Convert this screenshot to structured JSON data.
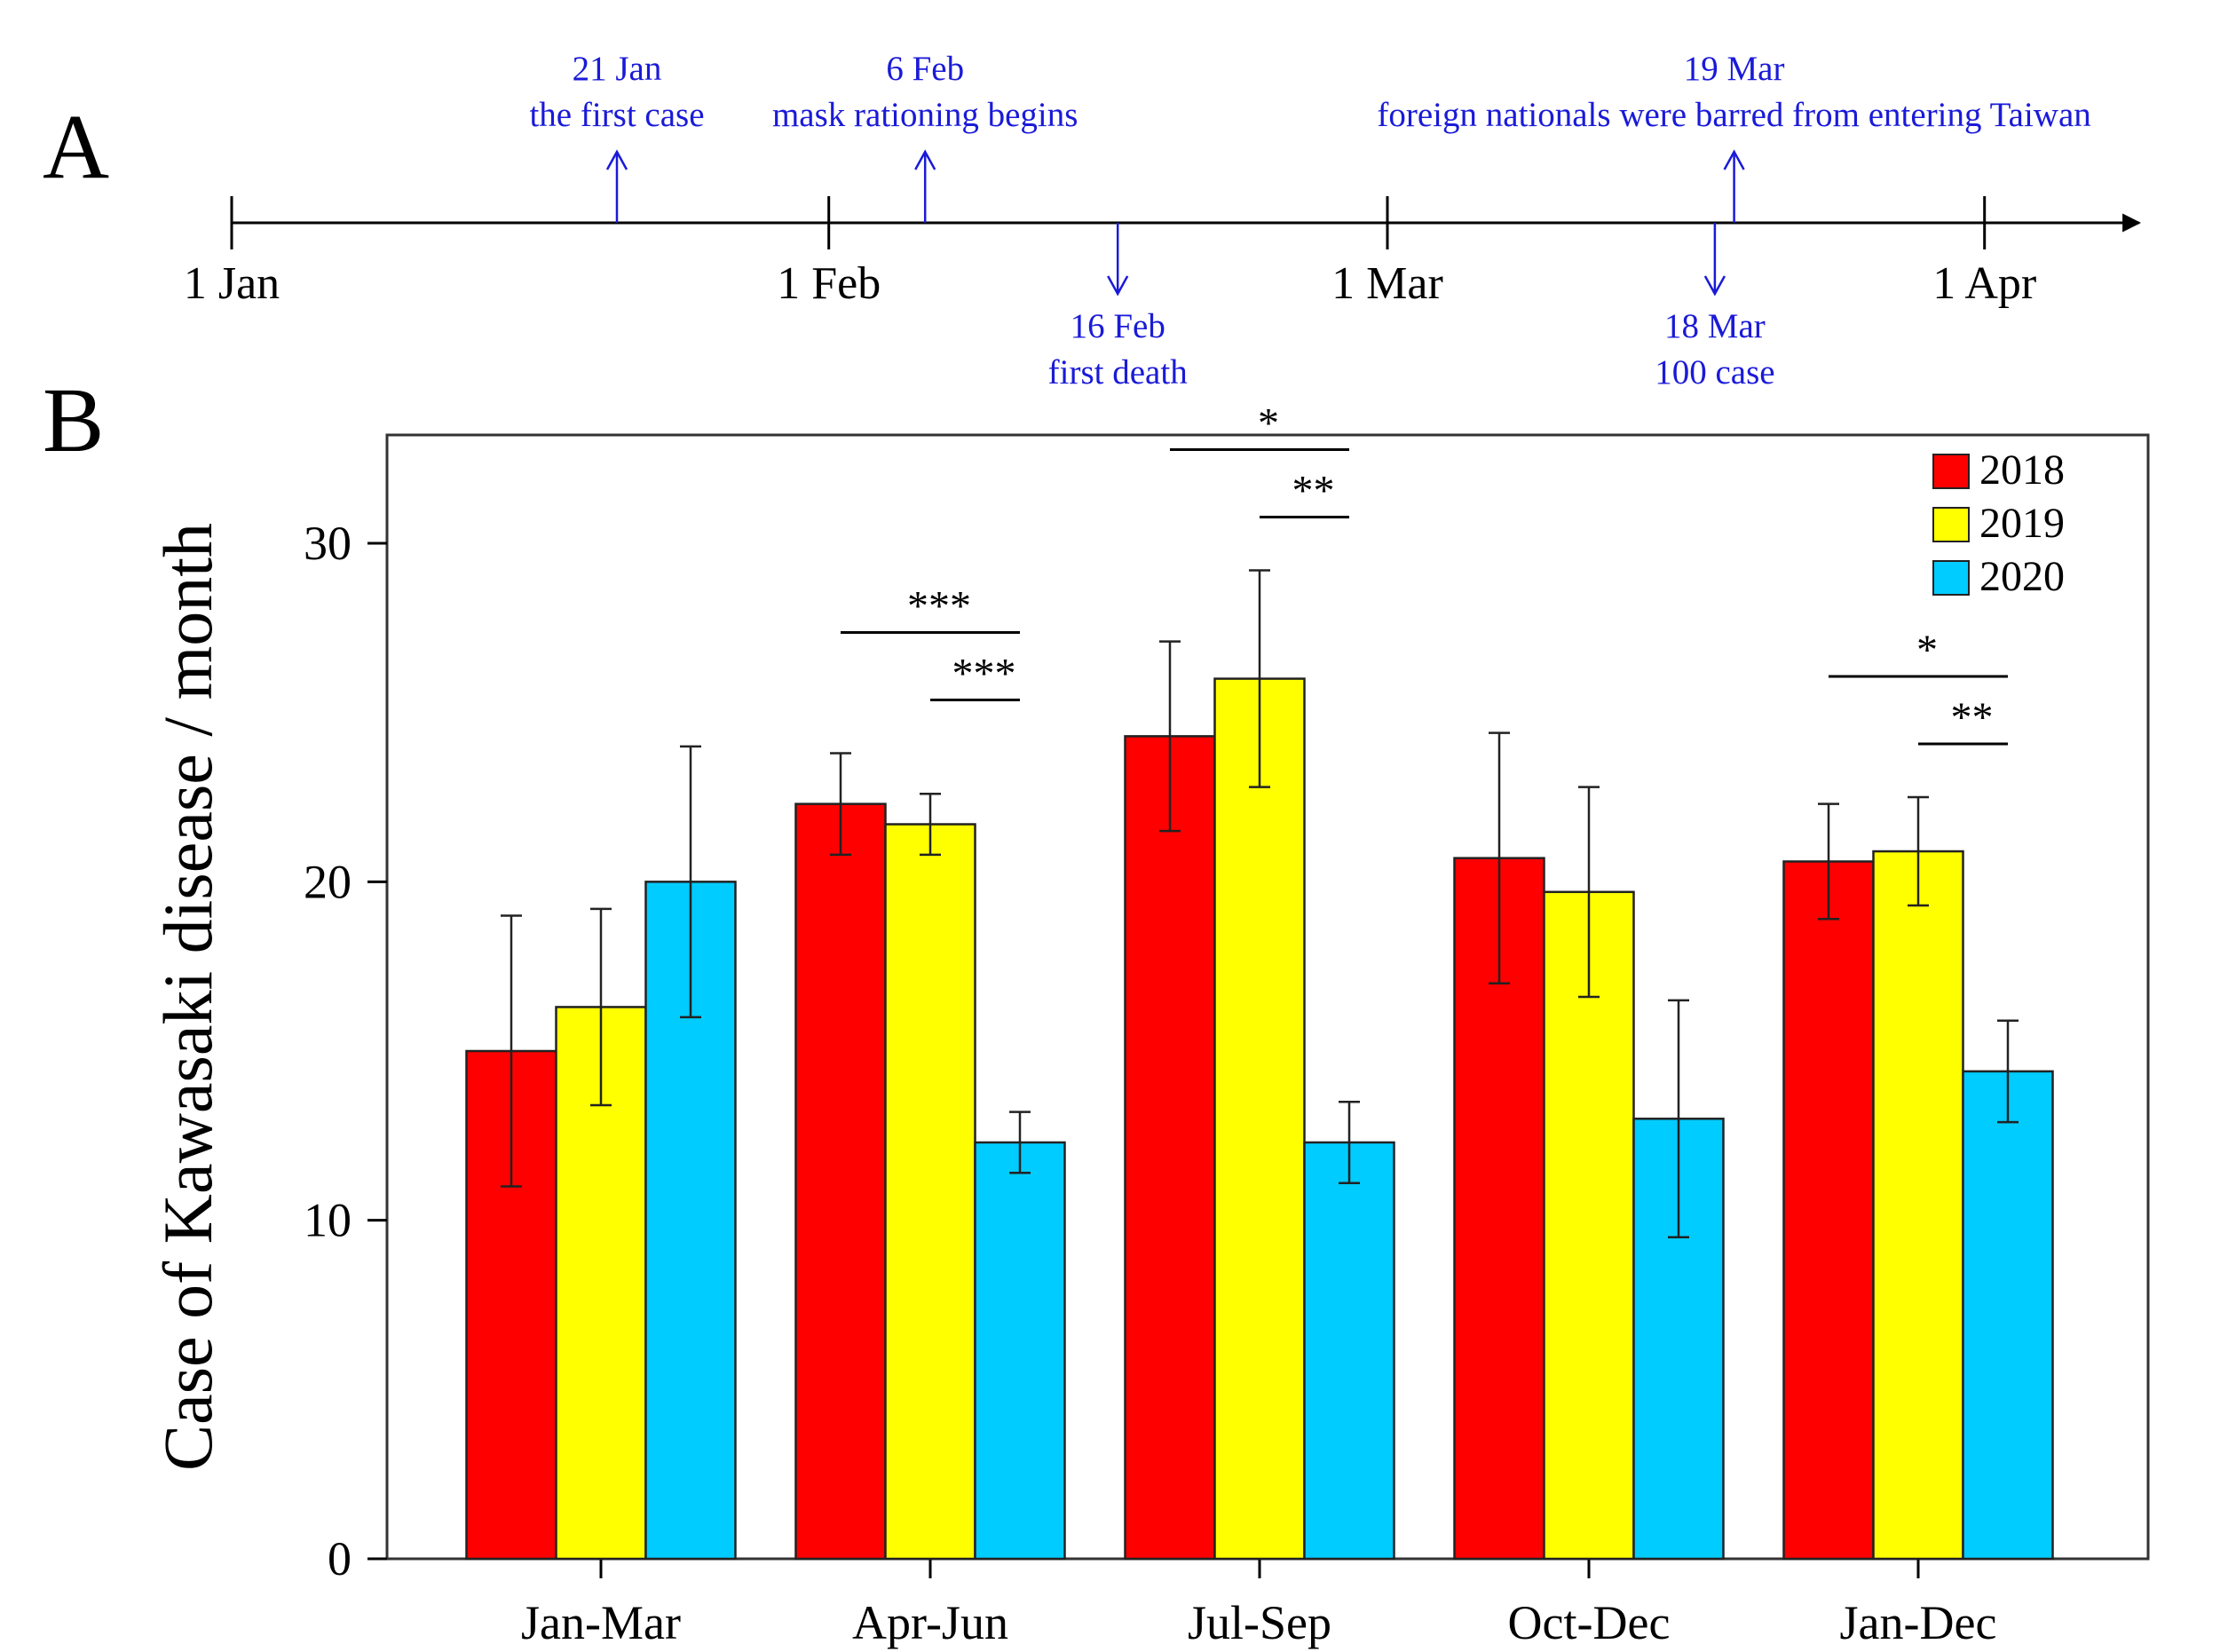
{
  "panel_a": {
    "label": "A",
    "ticks": [
      {
        "label": "1 Jan",
        "day": 0
      },
      {
        "label": "1 Feb",
        "day": 31
      },
      {
        "label": "1 Mar",
        "day": 60
      },
      {
        "label": "1 Apr",
        "day": 91
      }
    ],
    "events": [
      {
        "date": "21 Jan",
        "text": "the first case",
        "day": 20,
        "direction": "up"
      },
      {
        "date": "6 Feb",
        "text": "mask rationing begins",
        "day": 36,
        "direction": "up"
      },
      {
        "date": "16 Feb",
        "text": "first death",
        "day": 46,
        "direction": "down"
      },
      {
        "date": "18 Mar",
        "text": "100 case",
        "day": 77,
        "direction": "down"
      },
      {
        "date": "19 Mar",
        "text": "foreign nationals were barred from entering Taiwan",
        "day": 78,
        "direction": "up"
      }
    ]
  },
  "panel_b": {
    "label": "B"
  },
  "colors": {
    "2018": "#ff0000",
    "2019": "#ffff00",
    "2020": "#00ccff",
    "timeline": "#1a1ad8"
  },
  "chart_data": {
    "type": "bar",
    "title": "",
    "xlabel": "",
    "ylabel": "Case of Kawasaki disease / month",
    "ylim": [
      0,
      30
    ],
    "yticks": [
      0,
      10,
      20,
      30
    ],
    "categories": [
      "Jan-Mar",
      "Apr-Jun",
      "Jul-Sep",
      "Oct-Dec",
      "Jan-Dec"
    ],
    "series": [
      {
        "name": "2018",
        "values": [
          15.0,
          22.3,
          24.3,
          20.7,
          20.6
        ],
        "errors": [
          4.0,
          1.5,
          2.8,
          3.7,
          1.7
        ]
      },
      {
        "name": "2019",
        "values": [
          16.3,
          21.7,
          26.0,
          19.7,
          20.9
        ],
        "errors": [
          2.9,
          0.9,
          3.2,
          3.1,
          1.6
        ]
      },
      {
        "name": "2020",
        "values": [
          20.0,
          12.3,
          12.3,
          13.0,
          14.4
        ],
        "errors": [
          4.0,
          0.9,
          1.2,
          3.5,
          1.5
        ]
      }
    ],
    "legend": {
      "position": "top-right",
      "entries": [
        "2018",
        "2019",
        "2020"
      ]
    },
    "significance": [
      {
        "category": "Apr-Jun",
        "from": "2018",
        "to": "2020",
        "label": "***"
      },
      {
        "category": "Apr-Jun",
        "from": "2019",
        "to": "2020",
        "label": "***"
      },
      {
        "category": "Jul-Sep",
        "from": "2018",
        "to": "2020",
        "label": "*"
      },
      {
        "category": "Jul-Sep",
        "from": "2019",
        "to": "2020",
        "label": "**"
      },
      {
        "category": "Jan-Dec",
        "from": "2018",
        "to": "2020",
        "label": "*"
      },
      {
        "category": "Jan-Dec",
        "from": "2019",
        "to": "2020",
        "label": "**"
      }
    ],
    "grid": false
  }
}
